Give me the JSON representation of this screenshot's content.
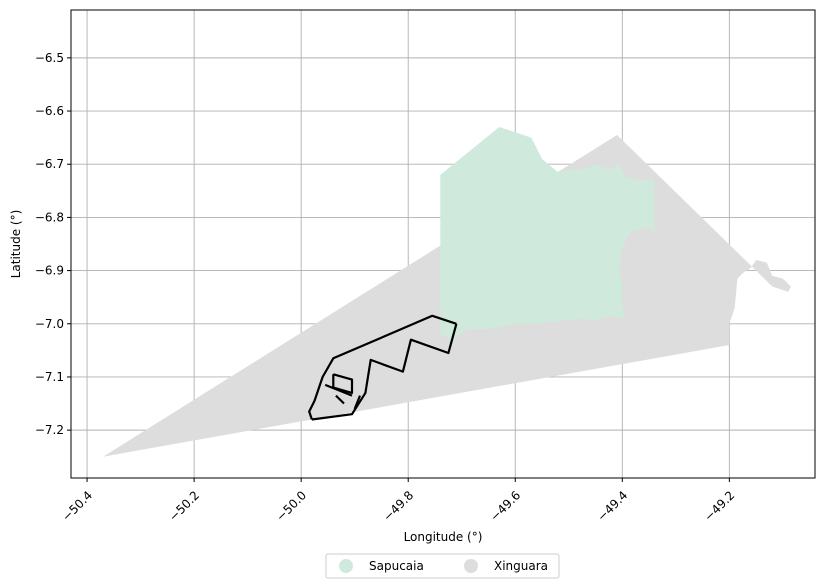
{
  "map": {
    "xlabel": "Longitude (°)",
    "ylabel": "Latitude (°)",
    "xlim": [
      -50.43,
      -49.04
    ],
    "ylim": [
      -7.29,
      -6.41
    ],
    "grid": true,
    "x_ticks": [
      {
        "value": -50.4,
        "label": "−50.4"
      },
      {
        "value": -50.2,
        "label": "−50.2"
      },
      {
        "value": -50.0,
        "label": "−50.0"
      },
      {
        "value": -49.8,
        "label": "−49.8"
      },
      {
        "value": -49.6,
        "label": "−49.6"
      },
      {
        "value": -49.4,
        "label": "−49.4"
      },
      {
        "value": -49.2,
        "label": "−49.2"
      }
    ],
    "y_ticks": [
      {
        "value": -6.5,
        "label": "−6.5"
      },
      {
        "value": -6.6,
        "label": "−6.6"
      },
      {
        "value": -6.7,
        "label": "−6.7"
      },
      {
        "value": -6.8,
        "label": "−6.8"
      },
      {
        "value": -6.9,
        "label": "−6.9"
      },
      {
        "value": -7.0,
        "label": "−7.0"
      },
      {
        "value": -7.1,
        "label": "−7.1"
      },
      {
        "value": -7.2,
        "label": "−7.2"
      }
    ],
    "regions": [
      {
        "name": "Xinguara",
        "color": "#dddddd",
        "polygon": [
          [
            -50.37,
            -7.25
          ],
          [
            -49.41,
            -6.645
          ],
          [
            -49.14,
            -6.91
          ],
          [
            -49.12,
            -6.93
          ],
          [
            -49.09,
            -6.94
          ],
          [
            -49.085,
            -6.93
          ],
          [
            -49.1,
            -6.915
          ],
          [
            -49.12,
            -6.91
          ],
          [
            -49.13,
            -6.885
          ],
          [
            -49.15,
            -6.88
          ],
          [
            -49.16,
            -6.895
          ],
          [
            -49.175,
            -6.905
          ],
          [
            -49.185,
            -6.915
          ],
          [
            -49.19,
            -6.97
          ],
          [
            -49.2,
            -7.0
          ],
          [
            -49.2,
            -7.04
          ]
        ]
      },
      {
        "name": "Sapucaia",
        "color": "#cfeadc",
        "polygon": [
          [
            -49.74,
            -6.72
          ],
          [
            -49.63,
            -6.63
          ],
          [
            -49.57,
            -6.65
          ],
          [
            -49.56,
            -6.67
          ],
          [
            -49.55,
            -6.69
          ],
          [
            -49.52,
            -6.715
          ],
          [
            -49.49,
            -6.71
          ],
          [
            -49.47,
            -6.71
          ],
          [
            -49.45,
            -6.7
          ],
          [
            -49.42,
            -6.71
          ],
          [
            -49.405,
            -6.7
          ],
          [
            -49.395,
            -6.725
          ],
          [
            -49.37,
            -6.73
          ],
          [
            -49.34,
            -6.728
          ],
          [
            -49.34,
            -6.83
          ],
          [
            -49.35,
            -6.82
          ],
          [
            -49.36,
            -6.82
          ],
          [
            -49.38,
            -6.825
          ],
          [
            -49.39,
            -6.835
          ],
          [
            -49.4,
            -6.86
          ],
          [
            -49.405,
            -6.9
          ],
          [
            -49.4,
            -6.93
          ],
          [
            -49.4,
            -6.96
          ],
          [
            -49.395,
            -6.99
          ],
          [
            -49.42,
            -6.985
          ],
          [
            -49.45,
            -6.995
          ],
          [
            -49.48,
            -6.99
          ],
          [
            -49.52,
            -6.995
          ],
          [
            -49.56,
            -7.0
          ],
          [
            -49.6,
            -7.0
          ],
          [
            -49.65,
            -7.01
          ],
          [
            -49.69,
            -7.01
          ],
          [
            -49.72,
            -7.03
          ],
          [
            -49.74,
            -7.02
          ]
        ]
      }
    ],
    "roads": [
      [
        [
          -49.71,
          -7.0
        ],
        [
          -49.755,
          -6.985
        ],
        [
          -49.94,
          -7.065
        ],
        [
          -49.96,
          -7.1
        ],
        [
          -49.975,
          -7.145
        ],
        [
          -49.985,
          -7.165
        ],
        [
          -49.98,
          -7.18
        ]
      ],
      [
        [
          -49.98,
          -7.18
        ],
        [
          -49.905,
          -7.17
        ],
        [
          -49.88,
          -7.13
        ],
        [
          -49.87,
          -7.068
        ],
        [
          -49.81,
          -7.09
        ],
        [
          -49.795,
          -7.03
        ],
        [
          -49.725,
          -7.055
        ],
        [
          -49.71,
          -7.0
        ]
      ],
      [
        [
          -49.94,
          -7.095
        ],
        [
          -49.905,
          -7.105
        ],
        [
          -49.905,
          -7.13
        ],
        [
          -49.94,
          -7.12
        ],
        [
          -49.94,
          -7.095
        ]
      ],
      [
        [
          -49.955,
          -7.115
        ],
        [
          -49.905,
          -7.135
        ]
      ],
      [
        [
          -49.935,
          -7.135
        ],
        [
          -49.92,
          -7.15
        ]
      ],
      [
        [
          -49.89,
          -7.135
        ],
        [
          -49.9,
          -7.16
        ]
      ]
    ],
    "road_color": "#000000",
    "legend": {
      "placement": "bottom-center",
      "entries": [
        {
          "label": "Sapucaia",
          "color": "#cfeadc"
        },
        {
          "label": "Xinguara",
          "color": "#dddddd"
        }
      ]
    }
  }
}
